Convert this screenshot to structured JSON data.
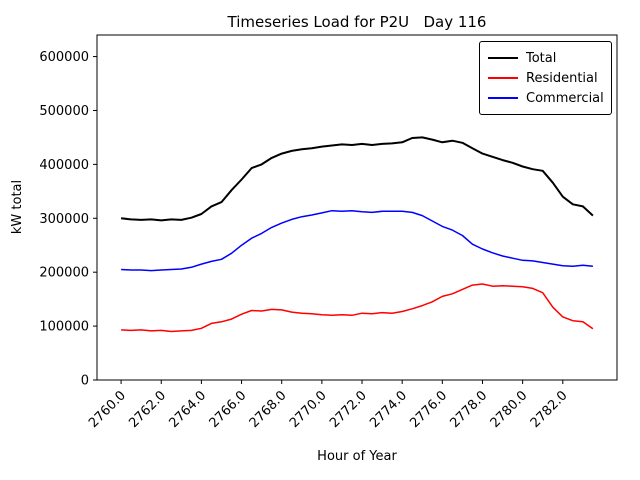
{
  "chart_data": {
    "type": "line",
    "title": "Timeseries Load for P2U   Day 116",
    "xlabel": "Hour of Year",
    "ylabel": "kW total",
    "xlim": [
      2758.8,
      2784.7
    ],
    "ylim": [
      0,
      640000
    ],
    "grid": false,
    "legend": {
      "position": "upper right"
    },
    "xticks": [
      {
        "value": 2760,
        "label": "2760.0"
      },
      {
        "value": 2762,
        "label": "2762.0"
      },
      {
        "value": 2764,
        "label": "2764.0"
      },
      {
        "value": 2766,
        "label": "2766.0"
      },
      {
        "value": 2768,
        "label": "2768.0"
      },
      {
        "value": 2770,
        "label": "2770.0"
      },
      {
        "value": 2772,
        "label": "2772.0"
      },
      {
        "value": 2774,
        "label": "2774.0"
      },
      {
        "value": 2776,
        "label": "2776.0"
      },
      {
        "value": 2778,
        "label": "2778.0"
      },
      {
        "value": 2780,
        "label": "2780.0"
      },
      {
        "value": 2782,
        "label": "2782.0"
      }
    ],
    "yticks": [
      {
        "value": 0,
        "label": "0"
      },
      {
        "value": 100000,
        "label": "100000"
      },
      {
        "value": 200000,
        "label": "200000"
      },
      {
        "value": 300000,
        "label": "300000"
      },
      {
        "value": 400000,
        "label": "400000"
      },
      {
        "value": 500000,
        "label": "500000"
      },
      {
        "value": 600000,
        "label": "600000"
      }
    ],
    "x": [
      2760.0,
      2760.5,
      2761.0,
      2761.5,
      2762.0,
      2762.5,
      2763.0,
      2763.5,
      2764.0,
      2764.5,
      2765.0,
      2765.5,
      2766.0,
      2766.5,
      2767.0,
      2767.5,
      2768.0,
      2768.5,
      2769.0,
      2769.5,
      2770.0,
      2770.5,
      2771.0,
      2771.5,
      2772.0,
      2772.5,
      2773.0,
      2773.5,
      2774.0,
      2774.5,
      2775.0,
      2775.5,
      2776.0,
      2776.5,
      2777.0,
      2777.5,
      2778.0,
      2778.5,
      2779.0,
      2779.5,
      2780.0,
      2780.5,
      2781.0,
      2781.5,
      2782.0,
      2782.5,
      2783.0,
      2783.5
    ],
    "series": [
      {
        "name": "Total",
        "color": "#000000",
        "linewidth": 2,
        "values": [
          300000,
          298000,
          297000,
          298000,
          296000,
          298000,
          297000,
          301000,
          308000,
          322000,
          330000,
          352000,
          372000,
          393000,
          400000,
          412000,
          420000,
          425000,
          428000,
          430000,
          433000,
          435000,
          437000,
          436000,
          438000,
          436000,
          438000,
          439000,
          441000,
          449000,
          450000,
          446000,
          441000,
          444000,
          440000,
          430000,
          420000,
          414000,
          408000,
          403000,
          396000,
          391000,
          388000,
          366000,
          340000,
          326000,
          322000,
          305000
        ]
      },
      {
        "name": "Residential",
        "color": "#ff0000",
        "linewidth": 1.5,
        "values": [
          93000,
          92000,
          93000,
          91000,
          92000,
          90000,
          91000,
          92000,
          96000,
          105000,
          108000,
          113000,
          122000,
          129000,
          128000,
          131000,
          130000,
          126000,
          124000,
          123000,
          121000,
          120000,
          121000,
          120000,
          124000,
          123000,
          125000,
          124000,
          127000,
          132000,
          138000,
          145000,
          155000,
          160000,
          168000,
          176000,
          178000,
          174000,
          175000,
          174000,
          173000,
          170000,
          162000,
          135000,
          117000,
          110000,
          108000,
          95000
        ]
      },
      {
        "name": "Commercial",
        "color": "#0000ff",
        "linewidth": 1.5,
        "values": [
          205000,
          204000,
          204000,
          203000,
          204000,
          205000,
          206000,
          209000,
          215000,
          220000,
          224000,
          235000,
          250000,
          263000,
          272000,
          283000,
          291000,
          298000,
          303000,
          306000,
          310000,
          314000,
          313000,
          314000,
          312000,
          311000,
          313000,
          313000,
          313000,
          311000,
          305000,
          295000,
          285000,
          278000,
          268000,
          252000,
          243000,
          236000,
          230000,
          226000,
          222000,
          221000,
          218000,
          215000,
          212000,
          211000,
          213000,
          211000
        ]
      }
    ]
  }
}
